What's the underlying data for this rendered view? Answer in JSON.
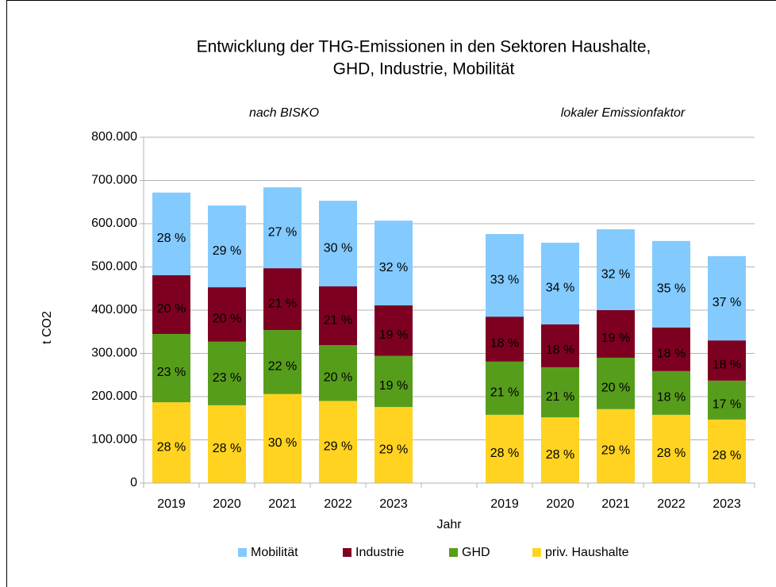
{
  "chart_data": {
    "type": "bar",
    "stacked": true,
    "title": [
      "Entwicklung der THG-Emissionen in den Sektoren Haushalte,",
      "GHD, Industrie, Mobilität"
    ],
    "group_labels": [
      "nach BISKO",
      "lokaler Emissionfaktor"
    ],
    "x_label": "Jahr",
    "y_label": "t CO2",
    "categories": [
      "2019",
      "2020",
      "2021",
      "2022",
      "2023",
      null,
      "2019",
      "2020",
      "2021",
      "2022",
      "2023"
    ],
    "series": [
      {
        "name": "priv. Haushalte",
        "color": "#ffd320",
        "values": [
          187000,
          180000,
          206000,
          190000,
          176000,
          null,
          158000,
          152000,
          171000,
          158000,
          147000
        ],
        "percent_labels": [
          "28 %",
          "28 %",
          "30 %",
          "29 %",
          "29 %",
          null,
          "28 %",
          "28 %",
          "29 %",
          "28 %",
          "28 %"
        ]
      },
      {
        "name": "GHD",
        "color": "#579d1c",
        "values": [
          158000,
          147000,
          148000,
          129000,
          118000,
          null,
          123000,
          116000,
          119000,
          101000,
          90000
        ],
        "percent_labels": [
          "23 %",
          "23 %",
          "22 %",
          "20 %",
          "19 %",
          null,
          "21 %",
          "21 %",
          "20 %",
          "18 %",
          "17 %"
        ]
      },
      {
        "name": "Industrie",
        "color": "#7e0021",
        "values": [
          136000,
          126000,
          143000,
          136000,
          117000,
          null,
          104000,
          99000,
          110000,
          101000,
          93000
        ],
        "percent_labels": [
          "20 %",
          "20 %",
          "21 %",
          "21 %",
          "19 %",
          null,
          "18 %",
          "18 %",
          "19 %",
          "18 %",
          "18 %"
        ]
      },
      {
        "name": "Mobilität",
        "color": "#83caff",
        "values": [
          191000,
          189000,
          187000,
          198000,
          196000,
          null,
          191000,
          189000,
          187000,
          200000,
          195000
        ],
        "percent_labels": [
          "28 %",
          "29 %",
          "27 %",
          "30 %",
          "32 %",
          null,
          "33 %",
          "34 %",
          "32 %",
          "35 %",
          "37 %"
        ]
      }
    ],
    "ylim": [
      0,
      800000
    ],
    "yticks": [
      0,
      {
        "value": 100000,
        "label": "100.000"
      },
      {
        "value": 200000,
        "label": "200.000"
      },
      {
        "value": 300000,
        "label": "300.000"
      },
      {
        "value": 400000,
        "label": "400.000"
      },
      {
        "value": 500000,
        "label": "500.000"
      },
      {
        "value": 600000,
        "label": "600.000"
      },
      {
        "value": 700000,
        "label": "700.000"
      },
      {
        "value": 800000,
        "label": "800.000"
      }
    ],
    "grid": true
  }
}
